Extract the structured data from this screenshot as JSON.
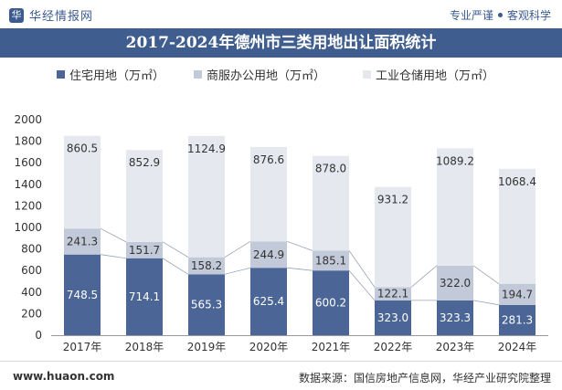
{
  "header": {
    "logo_text": "华经情报网",
    "logo_mark": "华",
    "slogan_left": "专业严谨",
    "slogan_right": "客观科学"
  },
  "chart_data": {
    "type": "bar",
    "stacked": true,
    "title": "2017-2024年德州市三类用地出让面积统计",
    "categories": [
      "2017年",
      "2018年",
      "2019年",
      "2020年",
      "2021年",
      "2022年",
      "2023年",
      "2024年"
    ],
    "series": [
      {
        "name": "住宅用地（万㎡）",
        "color": "#4a6596",
        "values": [
          748.5,
          714.1,
          565.3,
          625.4,
          600.2,
          323.0,
          323.3,
          281.3
        ]
      },
      {
        "name": "商服办公用地（万㎡）",
        "color": "#c2cad9",
        "values": [
          241.3,
          151.7,
          158.2,
          244.9,
          185.1,
          122.1,
          322.0,
          194.7
        ]
      },
      {
        "name": "工业仓储用地（万㎡）",
        "color": "#e5e8ef",
        "values": [
          860.5,
          852.9,
          1124.9,
          876.6,
          878.0,
          931.2,
          1089.2,
          1068.4
        ]
      }
    ],
    "yticks": [
      0,
      200,
      400,
      600,
      800,
      1000,
      1200,
      1400,
      1600,
      1800,
      2000
    ],
    "ylim": [
      0,
      2000
    ],
    "legend_position": "top",
    "grid": false
  },
  "footer": {
    "site": "www.huaon.com",
    "source": "数据来源：国信房地产信息网，华经产业研究院整理"
  }
}
